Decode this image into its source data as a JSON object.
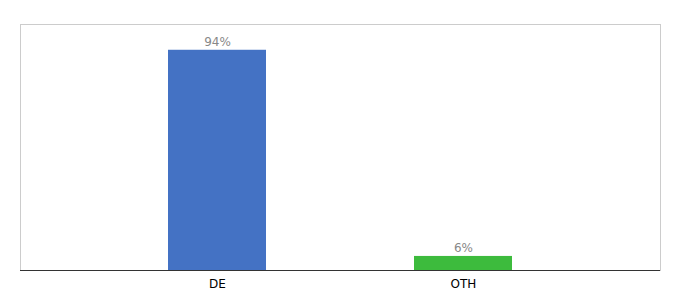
{
  "chart_data": {
    "type": "bar",
    "categories": [
      "DE",
      "OTH"
    ],
    "values": [
      94,
      6
    ],
    "value_labels": [
      "94%",
      "6%"
    ],
    "colors": [
      "#4472c4",
      "#3dbb3d"
    ],
    "ylim": [
      0,
      105
    ],
    "data_labels": true,
    "tick_labels": "x"
  }
}
